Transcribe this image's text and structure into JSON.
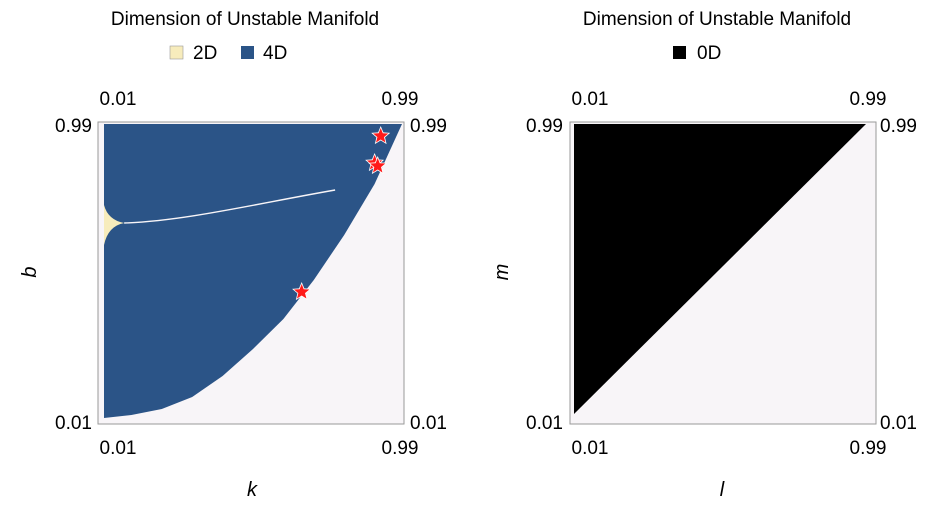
{
  "chart_data": [
    {
      "type": "heatmap",
      "title": "Dimension of Unstable Manifold",
      "xlabel": "k",
      "ylabel": "b",
      "xlim": [
        0.01,
        0.99
      ],
      "ylim": [
        0.01,
        0.99
      ],
      "x_ticks": [
        "0.01",
        "0.99"
      ],
      "y_ticks": [
        "0.01",
        "0.99"
      ],
      "legend": [
        {
          "label": "2D",
          "color": "#f7ecbc"
        },
        {
          "label": "4D",
          "color": "#2b5487"
        }
      ],
      "background_color": "#f8f5f8",
      "regions": [
        {
          "name": "4D",
          "description_boundary_k": [
            0.01,
            0.1,
            0.2,
            0.3,
            0.4,
            0.5,
            0.6,
            0.7,
            0.8,
            0.9,
            0.99
          ],
          "boundary_b": [
            0.01,
            0.02,
            0.04,
            0.08,
            0.15,
            0.24,
            0.34,
            0.47,
            0.62,
            0.79,
            0.99
          ]
        },
        {
          "name": "2D",
          "k_range": [
            0.01,
            0.05
          ],
          "b_center": 0.66
        }
      ],
      "markers": [
        {
          "k": 0.92,
          "b": 0.95
        },
        {
          "k": 0.9,
          "b": 0.86
        },
        {
          "k": 0.91,
          "b": 0.85
        },
        {
          "k": 0.66,
          "b": 0.43
        }
      ],
      "marker_color": "#ff1a1a"
    },
    {
      "type": "heatmap",
      "title": "Dimension of Unstable Manifold",
      "xlabel": "l",
      "ylabel": "m",
      "xlim": [
        0.01,
        0.99
      ],
      "ylim": [
        0.01,
        0.99
      ],
      "x_ticks": [
        "0.01",
        "0.99"
      ],
      "y_ticks": [
        "0.01",
        "0.99"
      ],
      "legend": [
        {
          "label": "0D",
          "color": "#000000"
        }
      ],
      "background_color": "#f8f5f8",
      "regions": [
        {
          "name": "0D",
          "condition": "m > l"
        }
      ]
    }
  ]
}
